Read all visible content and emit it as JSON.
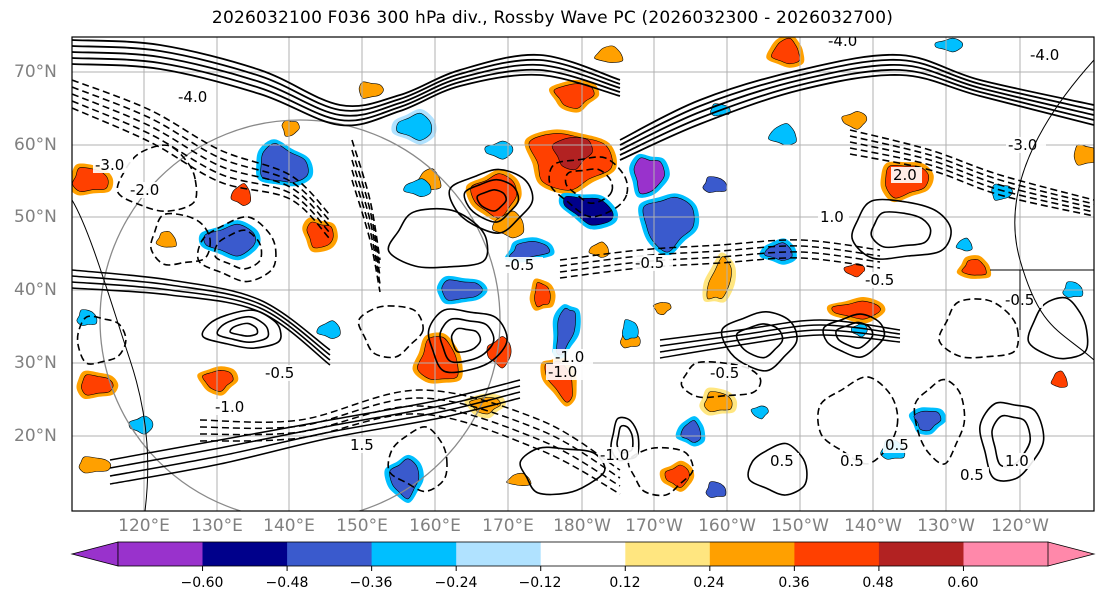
{
  "title": "2026032100 F036 300 hPa div., Rossby Wave PC (2026032300 - 2026032700)",
  "latitude_labels": [
    "70°N",
    "60°N",
    "50°N",
    "40°N",
    "30°N",
    "20°N"
  ],
  "longitude_labels": [
    "120°E",
    "130°E",
    "140°E",
    "150°E",
    "160°E",
    "170°E",
    "180°W",
    "170°W",
    "160°W",
    "150°W",
    "140°W",
    "130°W",
    "120°W"
  ],
  "contour_labels": [
    "-3.0",
    "-4.0",
    "-2.0",
    "-1.0",
    "-0.5",
    "-0.5",
    "-1.0",
    "-0.5",
    "0.5",
    "0.5",
    "1.0",
    "1.5",
    "-1.0",
    "-4.0",
    "-0.5",
    "2.0",
    "-4.0",
    "-3.0",
    "-1.0",
    "0.5",
    "-0.5",
    "1.0",
    "0.5",
    "-0.5"
  ],
  "colorbar": {
    "ticks": [
      "−0.60",
      "−0.48",
      "−0.36",
      "−0.24",
      "−0.12",
      "0.12",
      "0.24",
      "0.36",
      "0.48",
      "0.60"
    ],
    "colors": [
      "#9932cc",
      "#00008b",
      "#3a5acd",
      "#00bfff",
      "#b0e2ff",
      "#ffffff",
      "#ffe680",
      "#ffa000",
      "#ff4000",
      "#b22222",
      "#ff88aa"
    ],
    "under_color": "#9932cc",
    "over_color": "#ff88aa"
  },
  "fill_colors": {
    "pos1": "#ffe680",
    "pos2": "#ffa000",
    "pos3": "#ff4000",
    "pos4": "#b22222",
    "neg1": "#b0e2ff",
    "neg2": "#00bfff",
    "neg3": "#3a5acd",
    "neg4": "#00008b",
    "neg5": "#9932cc"
  }
}
